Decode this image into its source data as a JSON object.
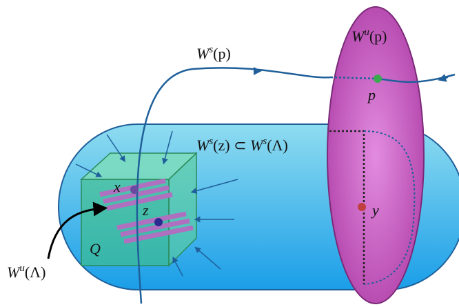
{
  "labels": {
    "ws_p": {
      "main": "W",
      "sup": "s",
      "arg": "(p)"
    },
    "wu_p": {
      "main": "W",
      "sup": "u",
      "arg": "(p)"
    },
    "p": "p",
    "ws_z": {
      "main": "W",
      "sup": "s",
      "arg": "(z) ⊂ ",
      "main2": "W",
      "sup2": "s",
      "arg2": "(Λ)"
    },
    "x": "x",
    "z": "z",
    "y": "y",
    "q": "Q",
    "wu_lambda": {
      "main": "W",
      "sup": "u",
      "arg": "(Λ)"
    }
  }
}
